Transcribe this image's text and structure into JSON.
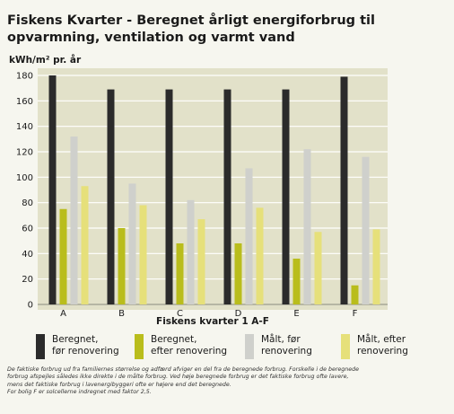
{
  "chart_data": {
    "type": "bar",
    "title": "Fiskens Kvarter - Beregnet årligt energiforbrug til opvarmning, ventilation og varmt vand",
    "ylabel": "kWh/m² pr. år",
    "xlabel": "Fiskens kvarter 1 A-F",
    "ylim": [
      0,
      180
    ],
    "yticks": [
      0,
      20,
      40,
      60,
      80,
      100,
      120,
      140,
      160,
      180
    ],
    "grid": true,
    "legend_position": "bottom",
    "categories": [
      "A",
      "B",
      "C",
      "D",
      "E",
      "F"
    ],
    "series": [
      {
        "name": "Beregnet,\nfør renovering",
        "color": "#2b2b2b",
        "values": [
          180,
          169,
          169,
          169,
          169,
          179
        ]
      },
      {
        "name": "Beregnet,\nefter renovering",
        "color": "#b9bd1c",
        "values": [
          75,
          60,
          48,
          48,
          36,
          15
        ]
      },
      {
        "name": "Målt, før\nrenovering",
        "color": "#cfd0cc",
        "values": [
          132,
          95,
          82,
          107,
          122,
          116
        ]
      },
      {
        "name": "Målt, efter\nrenovering",
        "color": "#e6e07a",
        "values": [
          93,
          78,
          67,
          76,
          57,
          59
        ]
      }
    ]
  },
  "note": "De faktiske forbrug ud fra familiernes størrelse og adfærd afviger en del fra de beregnede forbrug. Forskelle i de beregnede\nforbrug afspejles således ikke direkte i de målte forbrug. Ved høje beregnede forbrug er det faktiske forbrug ofte lavere,\nmens det faktiske forbrug i lavenergibyggeri ofte er højere end det beregnede.\nFor bolig F er solcellerne indregnet med faktor 2,5."
}
